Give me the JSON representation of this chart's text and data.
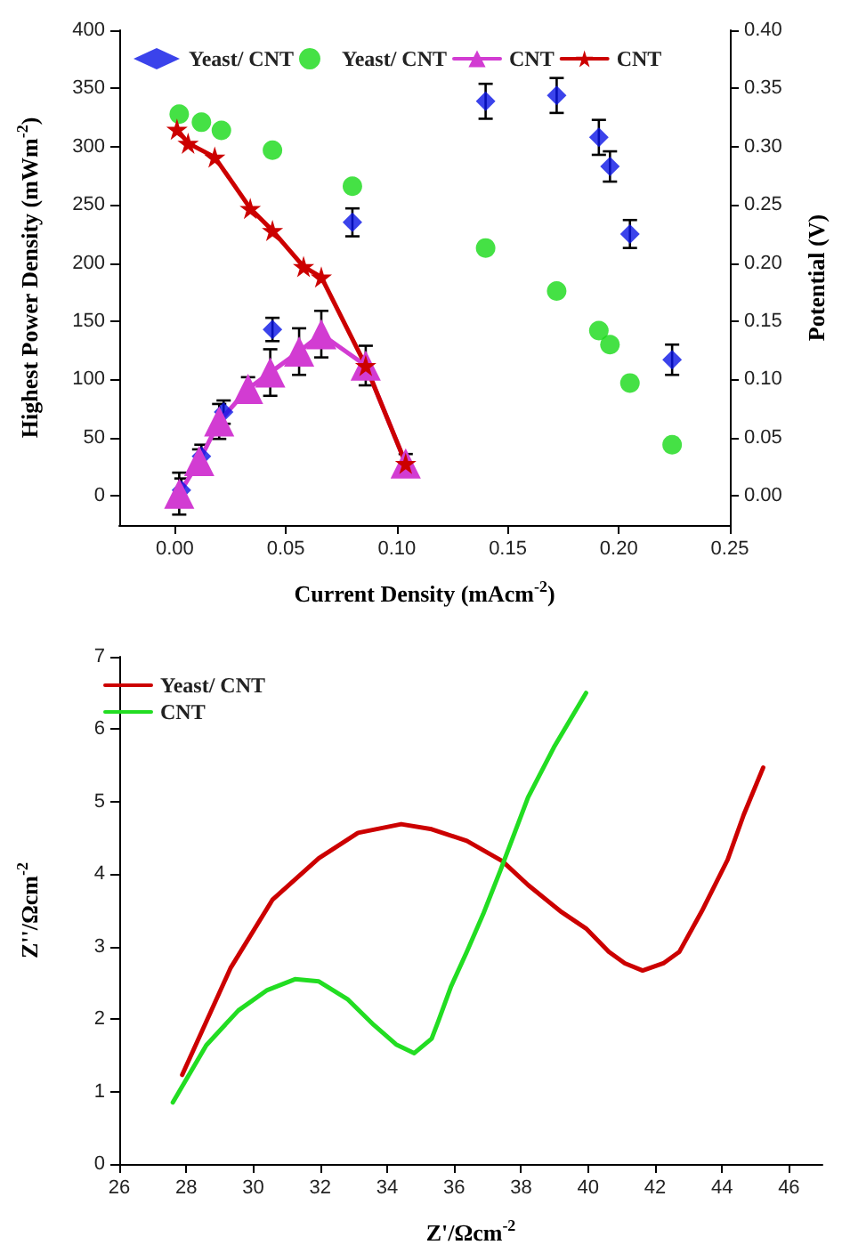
{
  "chart_data": [
    {
      "type": "scatter",
      "xlabel": "Current Density (mAcm$^{-2}$)",
      "ylabel": "Highest Power Density (mWm$^{-2}$)",
      "y2label": "Potential (V)",
      "legend": "top",
      "grid": false,
      "xlim": [
        -0.025,
        0.25
      ],
      "xticks": [
        {
          "value": 0,
          "label": "0.00"
        },
        {
          "value": 0.05,
          "label": "0.05"
        },
        {
          "value": 0.1,
          "label": "0.10"
        },
        {
          "value": 0.15,
          "label": "0.15"
        },
        {
          "value": 0.2,
          "label": "0.20"
        },
        {
          "value": 0.25,
          "label": "0.25"
        }
      ],
      "ylim": [
        -25,
        400
      ],
      "yticks": [
        0,
        50,
        100,
        150,
        200,
        250,
        300,
        350,
        400
      ],
      "y2lim": [
        -0.025,
        0.4
      ],
      "y2ticks": [
        {
          "value": 0,
          "label": "0.00"
        },
        {
          "value": 0.05,
          "label": "0.05"
        },
        {
          "value": 0.1,
          "label": "0.10"
        },
        {
          "value": 0.15,
          "label": "0.15"
        },
        {
          "value": 0.2,
          "label": "0.20"
        },
        {
          "value": 0.25,
          "label": "0.25"
        },
        {
          "value": 0.3,
          "label": "0.30"
        },
        {
          "value": 0.35,
          "label": "0.35"
        },
        {
          "value": 0.4,
          "label": "0.40"
        }
      ],
      "series": [
        {
          "name": "Yeast/ CNT",
          "marker": "diamond",
          "color": "#0a14e6",
          "x": [
            0.003,
            0.012,
            0.022,
            0.044,
            0.08,
            0.14,
            0.172,
            0.191,
            0.196,
            0.205,
            0.224
          ],
          "values": [
            5,
            34,
            72,
            143,
            235,
            339,
            344,
            308,
            283,
            225,
            117
          ],
          "errors": [
            10,
            10,
            10,
            10,
            12,
            15,
            15,
            15,
            13,
            12,
            13
          ]
        },
        {
          "name": "Yeast/ CNT",
          "marker": "circle",
          "color": "#16d916",
          "axis": "y2",
          "x": [
            0.002,
            0.012,
            0.021,
            0.044,
            0.08,
            0.14,
            0.172,
            0.191,
            0.196,
            0.205,
            0.224
          ],
          "values": [
            0.328,
            0.321,
            0.314,
            0.297,
            0.266,
            0.213,
            0.176,
            0.142,
            0.13,
            0.097,
            0.044
          ]
        },
        {
          "name": "CNT",
          "type": "line",
          "marker": "triangle",
          "color": "#d23cd2",
          "line_style": "solid",
          "x": [
            0.002,
            0.011,
            0.02,
            0.033,
            0.043,
            0.056,
            0.066,
            0.086,
            0.104
          ],
          "values": [
            2,
            30,
            64,
            92,
            106,
            124,
            139,
            112,
            28
          ],
          "errors": [
            18,
            10,
            15,
            10,
            20,
            20,
            20,
            17,
            8
          ]
        },
        {
          "name": "CNT",
          "type": "line",
          "marker": "star",
          "color": "#cc0000",
          "line_style": "solid",
          "axis": "y2",
          "x": [
            0.001,
            0.006,
            0.018,
            0.034,
            0.044,
            0.058,
            0.066,
            0.086,
            0.104
          ],
          "values": [
            0.315,
            0.303,
            0.291,
            0.247,
            0.228,
            0.197,
            0.188,
            0.112,
            0.028
          ]
        }
      ]
    },
    {
      "type": "line",
      "xlabel": "Z'/Ωcm$^{-2}$",
      "ylabel": "Z''/Ωcm$^{-2}$",
      "legend": "top left",
      "grid": false,
      "marker": "none",
      "line_style": "solid",
      "xlim": [
        26,
        47
      ],
      "xticks": [
        26,
        28,
        30,
        32,
        34,
        36,
        38,
        40,
        42,
        44,
        46
      ],
      "ylim": [
        0,
        7
      ],
      "yticks": [
        0,
        1,
        2,
        3,
        4,
        5,
        6,
        7
      ],
      "series": [
        {
          "name": "Yeast/ CNT",
          "color": "#cc0000",
          "x": [
            27.88,
            29.33,
            30.58,
            31.96,
            33.13,
            34.42,
            35.33,
            36.38,
            37.44,
            38.21,
            39.17,
            39.94,
            40.62,
            41.1,
            41.63,
            42.25,
            42.73,
            43.4,
            44.17,
            44.65,
            45.23
          ],
          "values": [
            1.23,
            2.71,
            3.65,
            4.22,
            4.57,
            4.69,
            4.62,
            4.46,
            4.18,
            3.85,
            3.49,
            3.25,
            2.93,
            2.77,
            2.67,
            2.77,
            2.93,
            3.49,
            4.2,
            4.82,
            5.47
          ]
        },
        {
          "name": "CNT",
          "color": "#22dd22",
          "x": [
            27.6,
            28.6,
            29.56,
            30.42,
            31.25,
            31.96,
            32.83,
            33.6,
            34.27,
            34.81,
            35.33,
            35.52,
            35.9,
            36.38,
            36.87,
            37.39,
            38.21,
            38.98,
            39.94
          ],
          "values": [
            0.85,
            1.64,
            2.12,
            2.4,
            2.55,
            2.52,
            2.27,
            1.92,
            1.65,
            1.53,
            1.73,
            1.96,
            2.44,
            2.93,
            3.45,
            4.06,
            5.06,
            5.75,
            6.5
          ]
        }
      ]
    }
  ]
}
